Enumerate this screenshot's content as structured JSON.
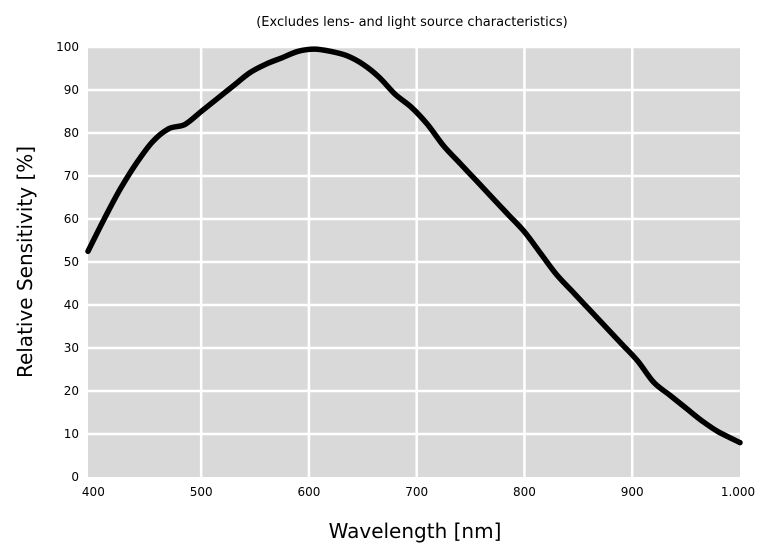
{
  "chart_data": {
    "type": "line",
    "title": "",
    "subtitle": "(Excludes lens- and light source characteristics)",
    "xlabel": "Wavelength [nm]",
    "ylabel": "Relative Sensitivity [%]",
    "xlim": [
      395,
      1000
    ],
    "ylim": [
      0,
      100
    ],
    "x_ticks": [
      400,
      500,
      600,
      700,
      800,
      900,
      1000
    ],
    "x_tick_labels": [
      "400",
      "500",
      "600",
      "700",
      "800",
      "900",
      "1.000"
    ],
    "y_ticks": [
      0,
      10,
      20,
      30,
      40,
      50,
      60,
      70,
      80,
      90,
      100
    ],
    "y_tick_labels": [
      "0",
      "10",
      "20",
      "30",
      "40",
      "50",
      "60",
      "70",
      "80",
      "90",
      "100"
    ],
    "grid": true,
    "colors": {
      "plot_background": "#d9d9d9",
      "grid": "#ffffff",
      "line": "#000000"
    },
    "series": [
      {
        "x": [
          395,
          410,
          425,
          440,
          455,
          470,
          485,
          500,
          515,
          530,
          545,
          560,
          575,
          590,
          605,
          620,
          635,
          650,
          665,
          680,
          695,
          710,
          725,
          740,
          755,
          770,
          785,
          800,
          815,
          830,
          845,
          860,
          875,
          890,
          905,
          920,
          935,
          950,
          965,
          980,
          1000
        ],
        "values": [
          52.5,
          60,
          67,
          73,
          78,
          81,
          82,
          85,
          88,
          91,
          94,
          96,
          97.5,
          99,
          99.5,
          99,
          98,
          96,
          93,
          89,
          86,
          82,
          77,
          73,
          69,
          65,
          61,
          57,
          52,
          47,
          43,
          39,
          35,
          31,
          27,
          22,
          19,
          16,
          13,
          10.5,
          8
        ]
      }
    ]
  }
}
